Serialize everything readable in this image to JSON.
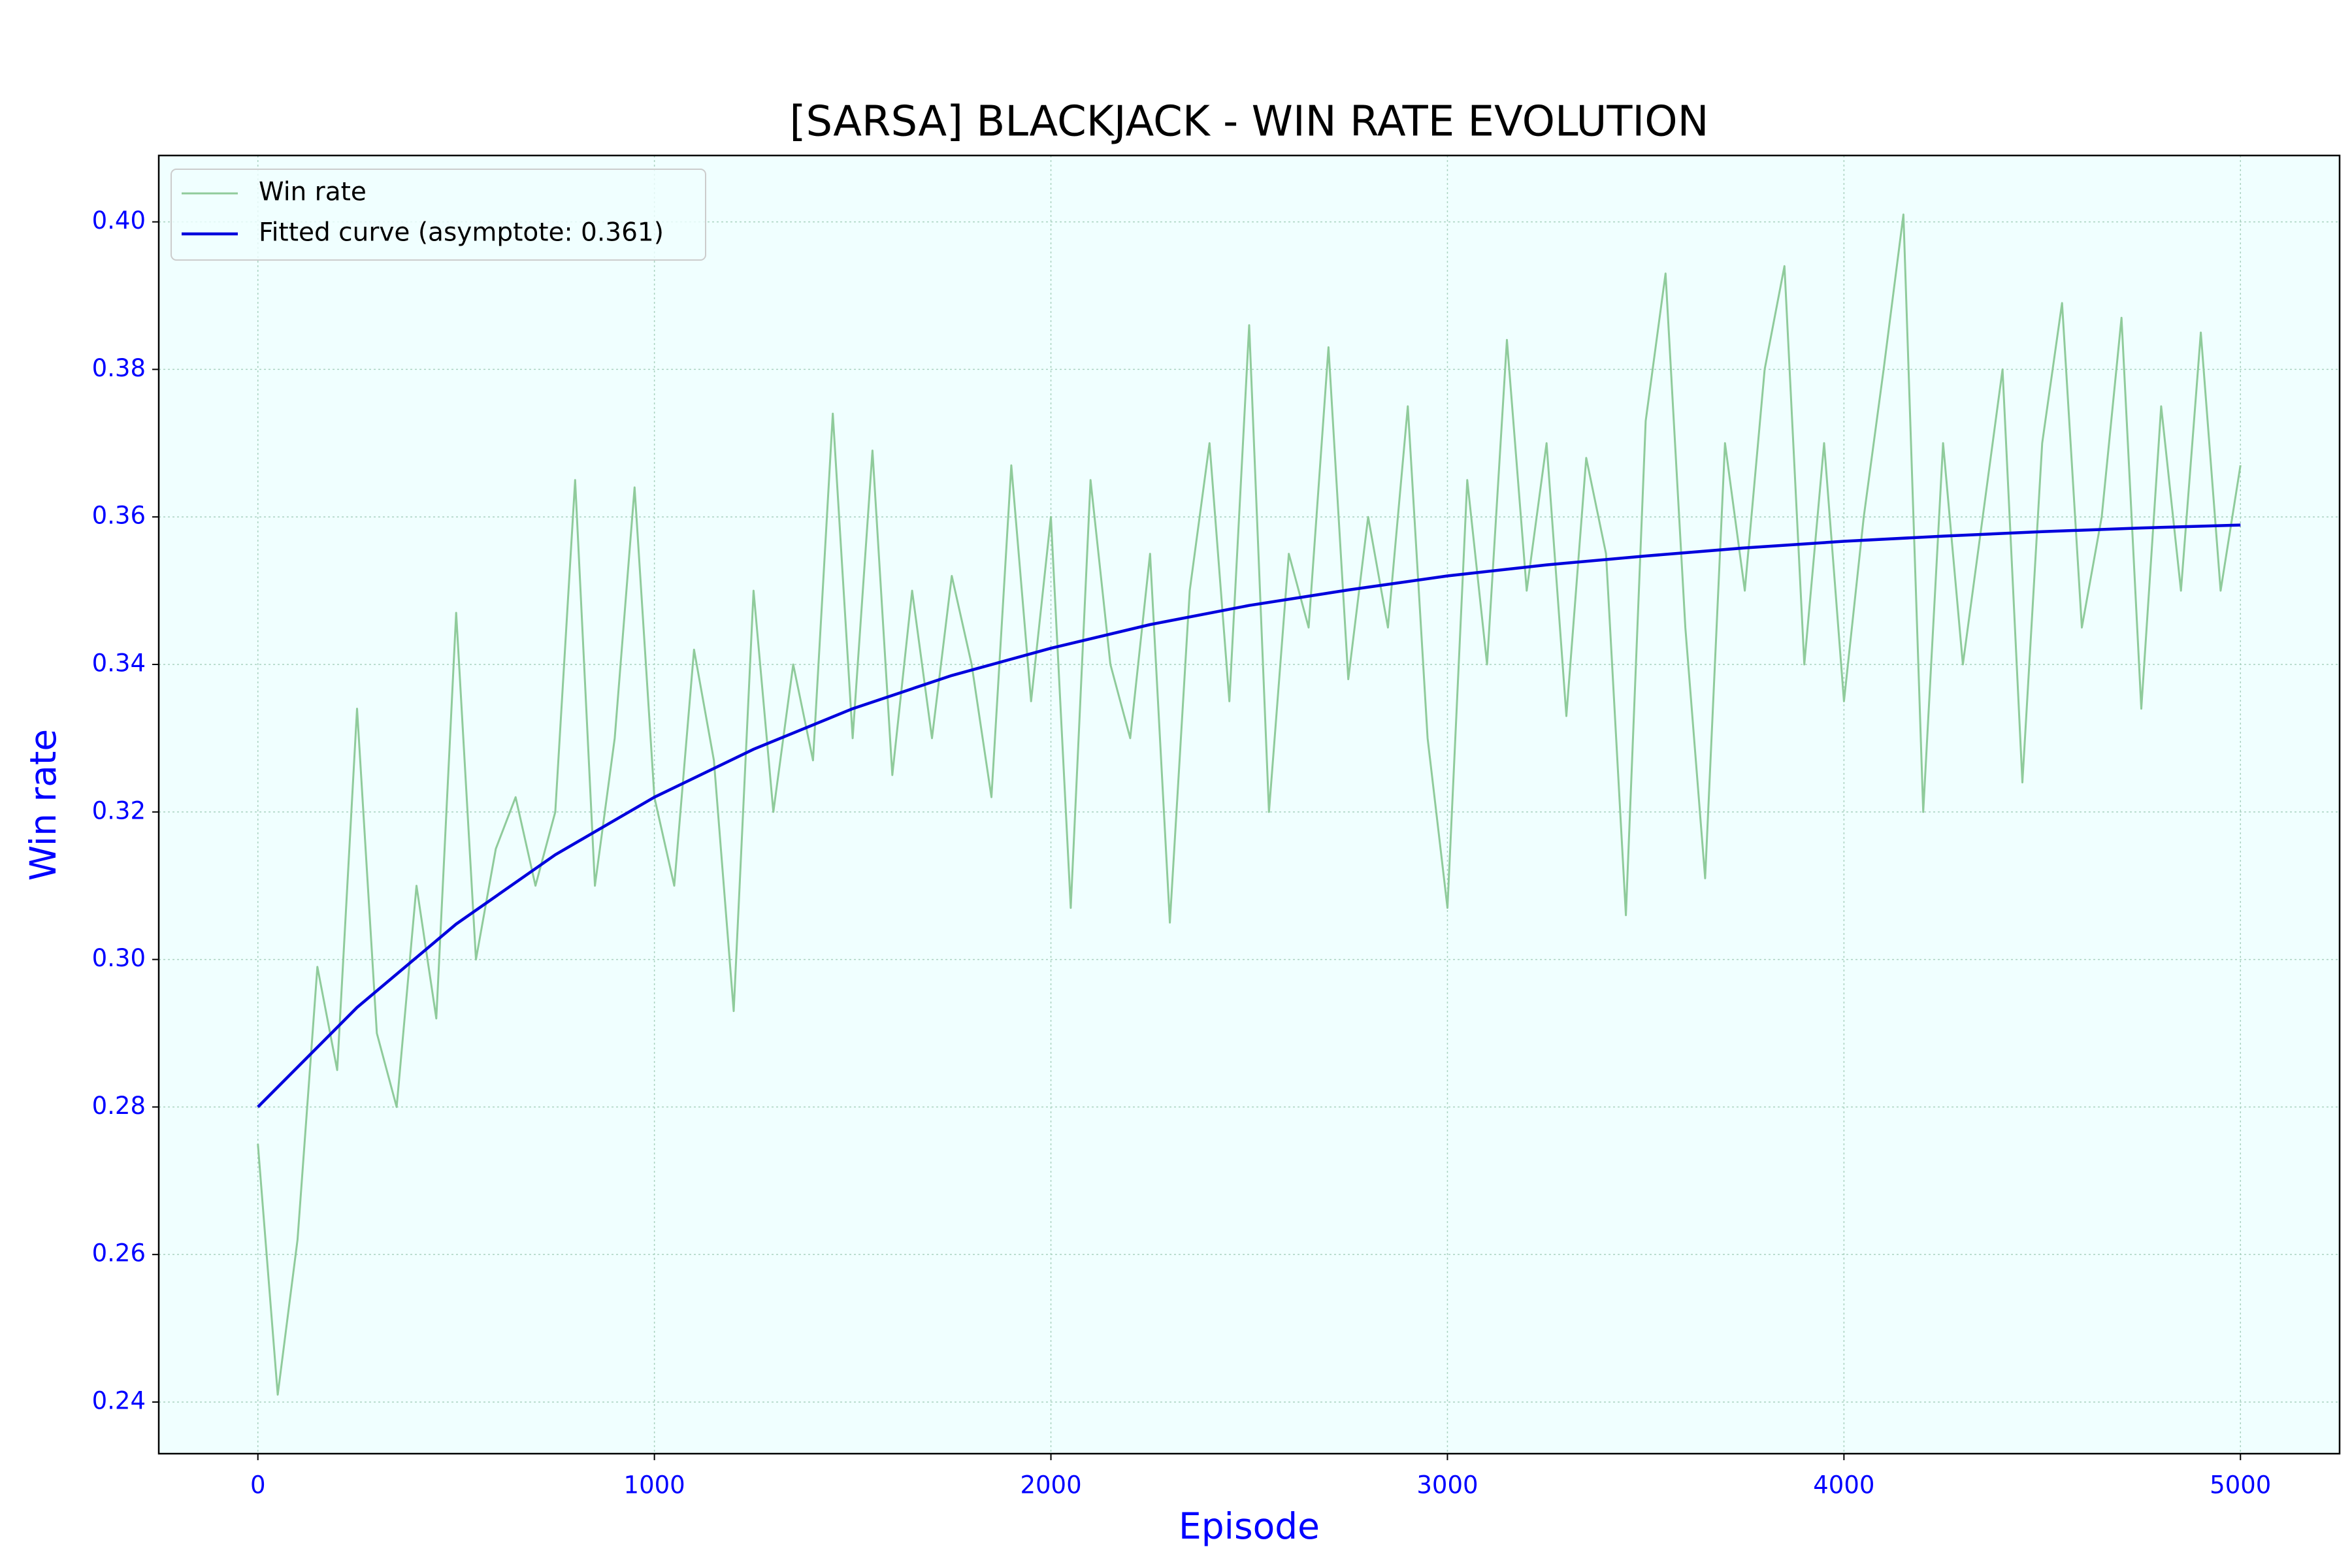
{
  "chart_data": {
    "type": "line",
    "title": "[SARSA] BLACKJACK - WIN RATE EVOLUTION",
    "x_label": "Episode",
    "y_label": "Win rate",
    "xlim": [
      -250,
      5250
    ],
    "ylim": [
      0.233,
      0.409
    ],
    "xticks": [
      0,
      1000,
      2000,
      3000,
      4000,
      5000
    ],
    "yticks": [
      0.24,
      0.26,
      0.28,
      {
        "value": 0.3,
        "label": "0.30"
      },
      0.32,
      0.34,
      0.36,
      0.38,
      {
        "value": 0.4,
        "label": "0.40"
      }
    ],
    "grid": true,
    "legend": "upper left",
    "series": [
      {
        "name": "Win rate",
        "color": "#8fcb9b",
        "x": [
          0,
          50,
          100,
          150,
          200,
          250,
          300,
          350,
          400,
          450,
          500,
          550,
          600,
          650,
          700,
          750,
          800,
          850,
          900,
          950,
          1000,
          1050,
          1100,
          1150,
          1200,
          1250,
          1300,
          1350,
          1400,
          1450,
          1500,
          1550,
          1600,
          1650,
          1700,
          1750,
          1800,
          1850,
          1900,
          1950,
          2000,
          2050,
          2100,
          2150,
          2200,
          2250,
          2300,
          2350,
          2400,
          2450,
          2500,
          2550,
          2600,
          2650,
          2700,
          2750,
          2800,
          2850,
          2900,
          2950,
          3000,
          3050,
          3100,
          3150,
          3200,
          3250,
          3300,
          3350,
          3400,
          3450,
          3500,
          3550,
          3600,
          3650,
          3700,
          3750,
          3800,
          3850,
          3900,
          3950,
          4000,
          4050,
          4100,
          4150,
          4200,
          4250,
          4300,
          4350,
          4400,
          4450,
          4500,
          4550,
          4600,
          4650,
          4700,
          4750,
          4800,
          4850,
          4900,
          4950,
          5000
        ],
        "values": [
          0.275,
          0.241,
          0.262,
          0.299,
          0.285,
          0.334,
          0.29,
          0.28,
          0.31,
          0.292,
          0.347,
          0.3,
          0.315,
          0.322,
          0.31,
          0.32,
          0.365,
          0.31,
          0.33,
          0.364,
          0.322,
          0.31,
          0.342,
          0.327,
          0.293,
          0.35,
          0.32,
          0.34,
          0.327,
          0.374,
          0.33,
          0.369,
          0.325,
          0.35,
          0.33,
          0.352,
          0.34,
          0.322,
          0.367,
          0.335,
          0.36,
          0.307,
          0.365,
          0.34,
          0.33,
          0.355,
          0.305,
          0.35,
          0.37,
          0.335,
          0.386,
          0.32,
          0.355,
          0.345,
          0.383,
          0.338,
          0.36,
          0.345,
          0.375,
          0.33,
          0.307,
          0.365,
          0.34,
          0.384,
          0.35,
          0.37,
          0.333,
          0.368,
          0.355,
          0.306,
          0.373,
          0.393,
          0.345,
          0.311,
          0.37,
          0.35,
          0.38,
          0.394,
          0.34,
          0.37,
          0.335,
          0.36,
          0.38,
          0.401,
          0.32,
          0.37,
          0.34,
          0.36,
          0.38,
          0.324,
          0.37,
          0.389,
          0.345,
          0.36,
          0.387,
          0.334,
          0.375,
          0.35,
          0.385,
          0.35,
          0.367
        ]
      },
      {
        "name": "Fitted curve (asymptote: 0.361)",
        "color": "#0000dd",
        "x": [
          0,
          250,
          500,
          750,
          1000,
          1250,
          1500,
          1750,
          2000,
          2250,
          2500,
          2750,
          3000,
          3250,
          3500,
          3750,
          4000,
          4250,
          4500,
          4750,
          5000
        ],
        "values": [
          0.28,
          0.2935,
          0.3048,
          0.3142,
          0.322,
          0.3285,
          0.334,
          0.3385,
          0.3422,
          0.3454,
          0.348,
          0.3501,
          0.352,
          0.3535,
          0.3547,
          0.3558,
          0.3567,
          0.3574,
          0.358,
          0.3585,
          0.3589
        ]
      }
    ]
  }
}
